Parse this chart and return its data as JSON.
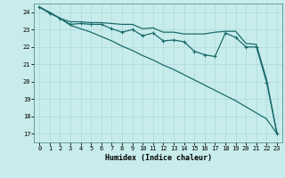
{
  "xlabel": "Humidex (Indice chaleur)",
  "background_color": "#c8ecec",
  "grid_color": "#add8d8",
  "line_color": "#1a6b6b",
  "xlim": [
    -0.5,
    23.5
  ],
  "ylim": [
    16.5,
    24.5
  ],
  "yticks": [
    17,
    18,
    19,
    20,
    21,
    22,
    23,
    24
  ],
  "xticks": [
    0,
    1,
    2,
    3,
    4,
    5,
    6,
    7,
    8,
    9,
    10,
    11,
    12,
    13,
    14,
    15,
    16,
    17,
    18,
    19,
    20,
    21,
    22,
    23
  ],
  "upper_y": [
    24.3,
    23.95,
    23.65,
    23.45,
    23.45,
    23.4,
    23.4,
    23.35,
    23.3,
    23.3,
    23.05,
    23.1,
    22.85,
    22.85,
    22.75,
    22.75,
    22.75,
    22.85,
    22.9,
    22.9,
    22.2,
    22.15,
    20.1,
    17.0
  ],
  "mid_y": [
    24.3,
    23.95,
    23.65,
    23.3,
    23.35,
    23.3,
    23.3,
    23.05,
    22.85,
    23.0,
    22.65,
    22.8,
    22.35,
    22.4,
    22.3,
    21.75,
    21.55,
    21.45,
    22.8,
    22.55,
    22.0,
    22.0,
    19.95,
    17.0
  ],
  "diag_y": [
    24.3,
    24.0,
    23.65,
    23.25,
    23.05,
    22.85,
    22.6,
    22.35,
    22.05,
    21.8,
    21.5,
    21.25,
    20.95,
    20.7,
    20.4,
    20.1,
    19.8,
    19.5,
    19.2,
    18.9,
    18.55,
    18.2,
    17.85,
    17.0
  ]
}
